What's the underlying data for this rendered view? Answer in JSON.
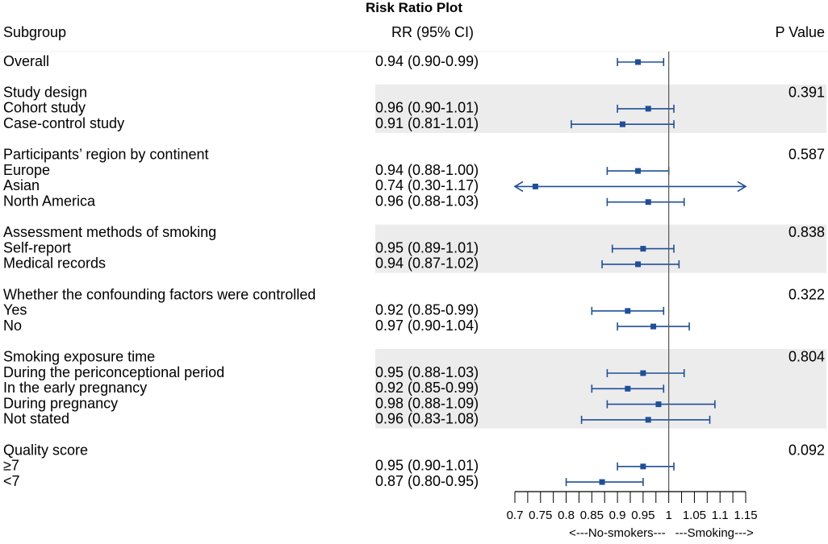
{
  "chart_data": {
    "type": "forest",
    "title": "Risk Ratio Plot",
    "columns": {
      "subgroup": "Subgroup",
      "estimate": "RR (95% CI)",
      "pvalue": "P Value"
    },
    "reference_line": 1,
    "x_range": [
      0.7,
      1.15
    ],
    "x_ticks": [
      0.7,
      0.725,
      0.75,
      0.775,
      0.8,
      0.825,
      0.85,
      0.875,
      0.9,
      0.925,
      0.95,
      0.975,
      1.0,
      1.025,
      1.05,
      1.075,
      1.1,
      1.125,
      1.15
    ],
    "x_tick_labels": [
      "0.7",
      "0.75",
      "0.8",
      "0.85",
      "0.9",
      "0.95",
      "1",
      "1.05",
      "1.1",
      "1.15"
    ],
    "x_tick_label_values": [
      0.7,
      0.75,
      0.8,
      0.85,
      0.9,
      0.95,
      1.0,
      1.05,
      1.1,
      1.15
    ],
    "direction_labels": {
      "left": "<---No-smokers---",
      "right": "---Smoking--->"
    },
    "groups": [
      {
        "name": "Overall",
        "shaded": false,
        "is_row": true,
        "rr": 0.94,
        "lo": 0.9,
        "hi": 0.99,
        "ci_text": "0.94 (0.90-0.99)",
        "p": null,
        "rows": []
      },
      {
        "name": "Study design",
        "shaded": true,
        "p": "0.391",
        "rows": [
          {
            "label": "Cohort study",
            "rr": 0.96,
            "lo": 0.9,
            "hi": 1.01,
            "ci_text": "0.96 (0.90-1.01)"
          },
          {
            "label": "Case-control study",
            "rr": 0.91,
            "lo": 0.81,
            "hi": 1.01,
            "ci_text": "0.91 (0.81-1.01)"
          }
        ]
      },
      {
        "name": "Participants’ region by continent",
        "shaded": false,
        "p": "0.587",
        "rows": [
          {
            "label": "Europe",
            "rr": 0.94,
            "lo": 0.88,
            "hi": 1.0,
            "ci_text": "0.94 (0.88-1.00)"
          },
          {
            "label": "Asian",
            "rr": 0.74,
            "lo": 0.3,
            "hi": 1.17,
            "ci_text": "0.74 (0.30-1.17)"
          },
          {
            "label": "North America",
            "rr": 0.96,
            "lo": 0.88,
            "hi": 1.03,
            "ci_text": "0.96 (0.88-1.03)"
          }
        ]
      },
      {
        "name": "Assessment methods of smoking",
        "shaded": true,
        "p": "0.838",
        "rows": [
          {
            "label": "Self-report",
            "rr": 0.95,
            "lo": 0.89,
            "hi": 1.01,
            "ci_text": "0.95 (0.89-1.01)"
          },
          {
            "label": "Medical records",
            "rr": 0.94,
            "lo": 0.87,
            "hi": 1.02,
            "ci_text": "0.94 (0.87-1.02)"
          }
        ]
      },
      {
        "name": "Whether the confounding factors were controlled",
        "shaded": false,
        "p": "0.322",
        "rows": [
          {
            "label": "Yes",
            "rr": 0.92,
            "lo": 0.85,
            "hi": 0.99,
            "ci_text": "0.92 (0.85-0.99)"
          },
          {
            "label": "No",
            "rr": 0.97,
            "lo": 0.9,
            "hi": 1.04,
            "ci_text": "0.97 (0.90-1.04)"
          }
        ]
      },
      {
        "name": "Smoking exposure time",
        "shaded": true,
        "p": "0.804",
        "rows": [
          {
            "label": "During the periconceptional period",
            "rr": 0.95,
            "lo": 0.88,
            "hi": 1.03,
            "ci_text": "0.95 (0.88-1.03)"
          },
          {
            "label": "In the early pregnancy",
            "rr": 0.92,
            "lo": 0.85,
            "hi": 0.99,
            "ci_text": "0.92 (0.85-0.99)"
          },
          {
            "label": "During  pregnancy",
            "rr": 0.98,
            "lo": 0.88,
            "hi": 1.09,
            "ci_text": "0.98 (0.88-1.09)"
          },
          {
            "label": "Not stated",
            "rr": 0.96,
            "lo": 0.83,
            "hi": 1.08,
            "ci_text": "0.96 (0.83-1.08)"
          }
        ]
      },
      {
        "name": "Quality score",
        "shaded": false,
        "p": "0.092",
        "rows": [
          {
            "label": "≥7",
            "rr": 0.95,
            "lo": 0.9,
            "hi": 1.01,
            "ci_text": "0.95 (0.90-1.01)"
          },
          {
            "label": "<7",
            "rr": 0.87,
            "lo": 0.8,
            "hi": 0.95,
            "ci_text": "0.87 (0.80-0.95)"
          }
        ]
      }
    ],
    "colors": {
      "marker": "#1f4e9a",
      "shade": "#ececec",
      "refline": "#555555",
      "text": "#000000"
    }
  }
}
